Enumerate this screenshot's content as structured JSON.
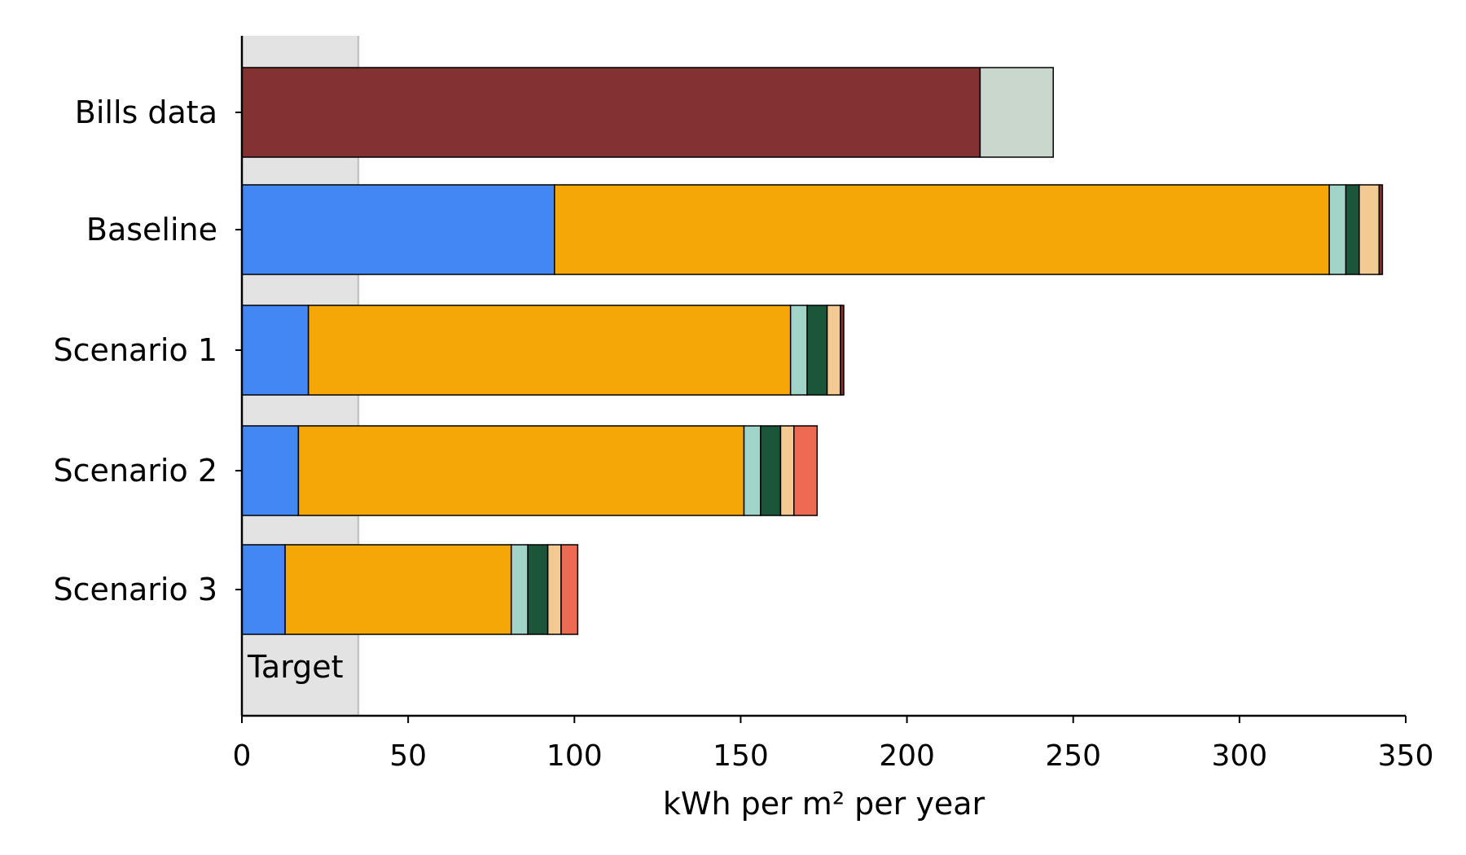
{
  "chart_data": {
    "type": "bar",
    "orientation": "horizontal",
    "stacked": true,
    "categories": [
      "Bills data",
      "Baseline",
      "Scenario 1",
      "Scenario 2",
      "Scenario 3"
    ],
    "title": "",
    "xlabel": "kWh per m² per year",
    "ylabel": "",
    "xlim": [
      0,
      350
    ],
    "xticks": [
      0,
      50,
      100,
      150,
      200,
      250,
      300,
      350
    ],
    "grid": false,
    "legend": "none",
    "target": {
      "label": "Target",
      "range": [
        0,
        35
      ],
      "color": "#e3e3e3"
    },
    "series": [
      {
        "color": "#823331",
        "values": [
          222,
          0,
          0,
          0,
          0
        ]
      },
      {
        "color": "#c9d7cd",
        "values": [
          22,
          0,
          0,
          0,
          0
        ]
      },
      {
        "color": "#4287f3",
        "values": [
          0,
          94,
          20,
          17,
          13
        ]
      },
      {
        "color": "#f5a708",
        "values": [
          0,
          233,
          145,
          134,
          68
        ]
      },
      {
        "color": "#a0d4c8",
        "values": [
          0,
          5,
          5,
          5,
          5
        ]
      },
      {
        "color": "#1b563b",
        "values": [
          0,
          4,
          6,
          6,
          6
        ]
      },
      {
        "color": "#f2ca92",
        "values": [
          0,
          6,
          4,
          4,
          4
        ]
      },
      {
        "color": "#823331",
        "values": [
          0,
          1,
          1,
          0,
          0
        ]
      },
      {
        "color": "#ef6a53",
        "values": [
          0,
          0,
          0,
          7,
          5
        ]
      }
    ]
  }
}
